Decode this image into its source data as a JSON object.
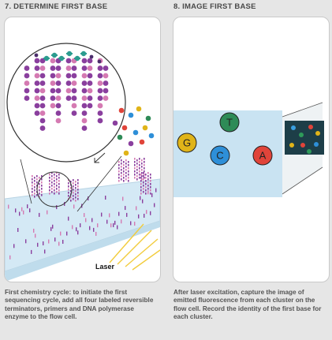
{
  "left": {
    "heading": "7. DETERMINE FIRST BASE",
    "laser_label": "Laser",
    "caption": "First chemistry cycle: to initiate the first sequencing cycle, add all four labeled reversible terminators, primers and DNA polymerase enzyme to the flow cell."
  },
  "right": {
    "heading": "8. IMAGE FIRST BASE",
    "bases": [
      {
        "letter": "T",
        "color": "#2e8b57"
      },
      {
        "letter": "G",
        "color": "#e0b419"
      },
      {
        "letter": "C",
        "color": "#2e8fd8"
      },
      {
        "letter": "A",
        "color": "#e0443a"
      }
    ],
    "caption": "After laser excitation, capture the image of emitted fluorescence from each cluster on the flow cell. Record the identity of the first base for each cluster."
  },
  "colors": {
    "purple": "#8a3f9e",
    "pink": "#d57ab2",
    "flowcell": "#cfe6f3",
    "laser": "#f2cc3d"
  }
}
